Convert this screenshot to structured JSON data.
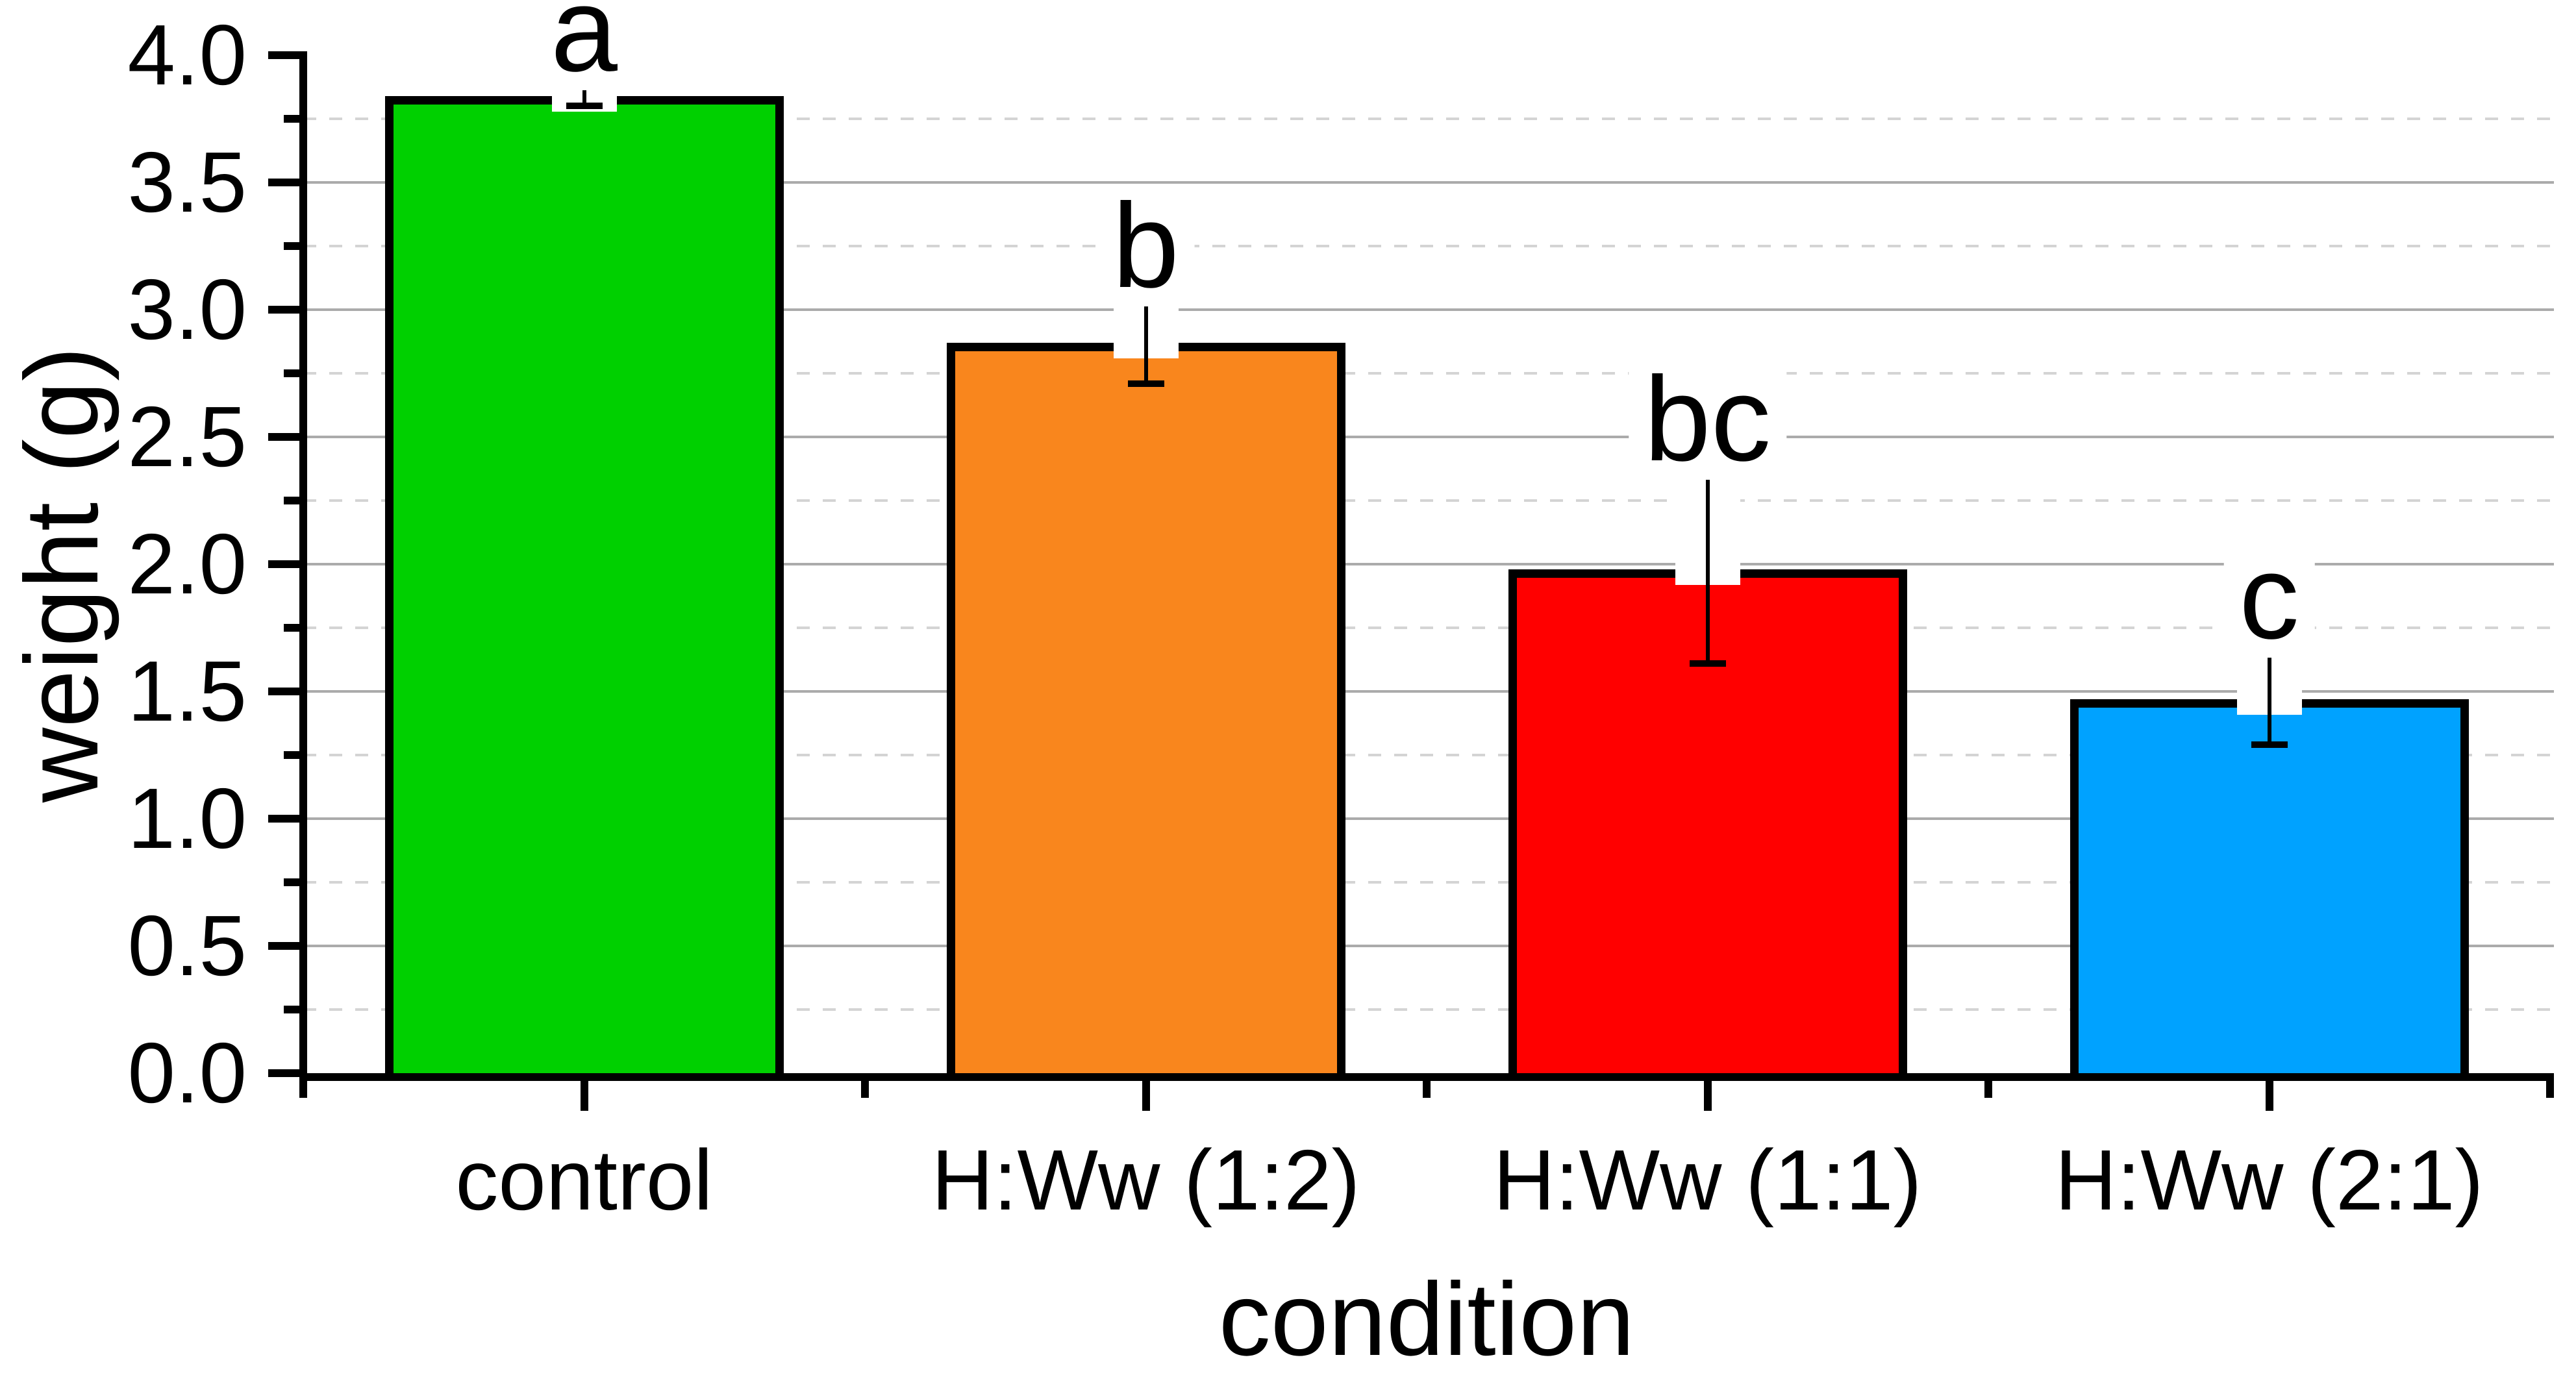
{
  "chart_data": {
    "type": "bar",
    "title": "",
    "xlabel": "condition",
    "ylabel": "weight (g)",
    "categories": [
      "control",
      "H:Ww (1:2)",
      "H:Ww (1:1)",
      "H:Ww (2:1)"
    ],
    "values": [
      3.84,
      2.87,
      1.98,
      1.47
    ],
    "errors": [
      0.04,
      0.16,
      0.37,
      0.18
    ],
    "sig_letters": [
      "a",
      "b",
      "bc",
      "c"
    ],
    "bar_colors": [
      "#00D000",
      "#F9861D",
      "#FF0000",
      "#00A2FF"
    ],
    "ylim": [
      0,
      4.0
    ],
    "y_major_step": 0.5,
    "y_minor_step": 0.25,
    "y_tick_labels": [
      "0.0",
      "0.5",
      "1.0",
      "1.5",
      "2.0",
      "2.5",
      "3.0",
      "3.5",
      "4.0"
    ],
    "grid": {
      "major": "solid",
      "minor": "dashed",
      "major_color": "#ababab",
      "minor_color": "#d4d4d4"
    },
    "legend_position": "none",
    "axis_color": "#000000",
    "background_color": "#ffffff"
  }
}
